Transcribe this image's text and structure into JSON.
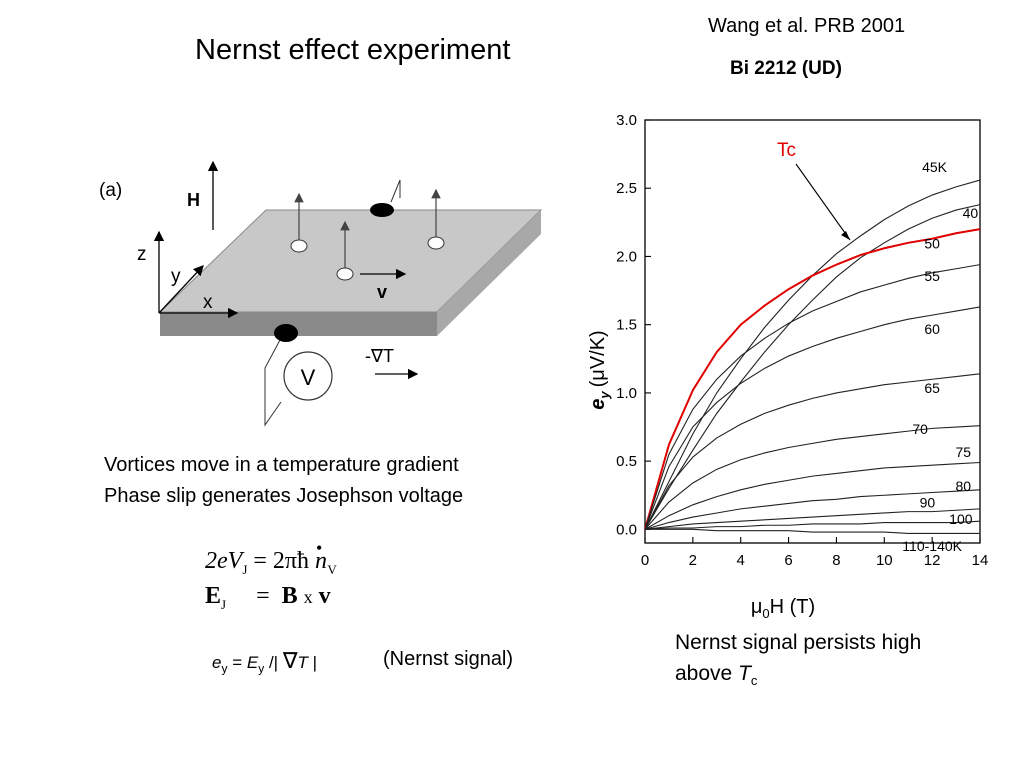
{
  "title": "Nernst effect experiment",
  "citation": "Wang et al. PRB 2001",
  "material": "Bi 2212 (UD)",
  "diagram": {
    "panel_label": "(a)",
    "field_label": "H",
    "axis_z": "z",
    "axis_y": "y",
    "axis_x": "x",
    "velocity_label": "v",
    "voltmeter_label": "V",
    "gradient_label": "-∇T"
  },
  "description": {
    "line1": "Vortices move in a temperature gradient",
    "line2": "Phase slip generates Josephson voltage"
  },
  "equations": {
    "josephson_lhs": "2eV",
    "josephson_lhs_sub": "J",
    "josephson_rhs": "= 2πħ ",
    "josephson_n": "n",
    "josephson_n_sub": "V",
    "field_E": "E",
    "field_E_sub": "J",
    "field_eq": "=",
    "field_B": "B",
    "field_x": "x",
    "field_v": "v",
    "signal_e": "e",
    "signal_e_sub": "y",
    "signal_eq": "=",
    "signal_E": "E",
    "signal_E_sub": "y",
    "signal_div": "/|",
    "signal_nabla": "∇",
    "signal_T": "T",
    "signal_bar": "|",
    "signal_note": "(Nernst signal)"
  },
  "conclusion": {
    "line1": "Nernst signal persists high",
    "line2_prefix": "above ",
    "tc": "T",
    "tc_sub": "c"
  },
  "chart_data": {
    "type": "line",
    "xlabel_prefix": "μ",
    "xlabel_sub": "0",
    "xlabel_suffix": "H (T)",
    "ylabel_main": "e",
    "ylabel_sub": "y",
    "ylabel_unit": "(μV/K)",
    "xlim": [
      0,
      14
    ],
    "ylim": [
      -0.1,
      3.0
    ],
    "xticks": [
      "0",
      "2",
      "4",
      "6",
      "8",
      "10",
      "12",
      "14"
    ],
    "yticks": [
      "0.0",
      "0.5",
      "1.0",
      "1.5",
      "2.0",
      "2.5",
      "3.0"
    ],
    "highlight_color": "#e00000",
    "line_color": "#222222",
    "tc_annotation": "Tc",
    "x": [
      0,
      1,
      2,
      3,
      4,
      5,
      6,
      7,
      8,
      9,
      10,
      11,
      12,
      13,
      14
    ],
    "series": [
      {
        "name": "45K",
        "values": [
          0,
          0.35,
          0.7,
          1.0,
          1.25,
          1.48,
          1.68,
          1.86,
          2.02,
          2.15,
          2.27,
          2.37,
          2.45,
          2.51,
          2.56
        ]
      },
      {
        "name": "40",
        "values": [
          0,
          0.3,
          0.58,
          0.85,
          1.08,
          1.3,
          1.5,
          1.68,
          1.85,
          1.99,
          2.1,
          2.2,
          2.28,
          2.34,
          2.38
        ]
      },
      {
        "name": "50",
        "values": [
          0,
          0.62,
          1.02,
          1.3,
          1.5,
          1.64,
          1.76,
          1.86,
          1.94,
          2.01,
          2.06,
          2.1,
          2.13,
          2.17,
          2.2
        ]
      },
      {
        "name": "55",
        "values": [
          0,
          0.55,
          0.88,
          1.1,
          1.27,
          1.4,
          1.51,
          1.6,
          1.67,
          1.74,
          1.79,
          1.84,
          1.88,
          1.91,
          1.94
        ]
      },
      {
        "name": "60",
        "values": [
          0,
          0.46,
          0.75,
          0.93,
          1.07,
          1.18,
          1.27,
          1.34,
          1.4,
          1.45,
          1.5,
          1.54,
          1.57,
          1.6,
          1.63
        ]
      },
      {
        "name": "65",
        "values": [
          0,
          0.32,
          0.53,
          0.67,
          0.77,
          0.85,
          0.91,
          0.96,
          1.0,
          1.03,
          1.06,
          1.08,
          1.1,
          1.12,
          1.14
        ]
      },
      {
        "name": "70",
        "values": [
          0,
          0.2,
          0.34,
          0.44,
          0.51,
          0.56,
          0.6,
          0.63,
          0.66,
          0.68,
          0.7,
          0.72,
          0.74,
          0.75,
          0.76
        ]
      },
      {
        "name": "75",
        "values": [
          0,
          0.1,
          0.18,
          0.24,
          0.29,
          0.33,
          0.36,
          0.39,
          0.41,
          0.43,
          0.45,
          0.46,
          0.47,
          0.48,
          0.49
        ]
      },
      {
        "name": "80",
        "values": [
          0,
          0.05,
          0.09,
          0.12,
          0.15,
          0.17,
          0.19,
          0.21,
          0.22,
          0.24,
          0.25,
          0.26,
          0.27,
          0.28,
          0.29
        ]
      },
      {
        "name": "90",
        "values": [
          0,
          0.02,
          0.04,
          0.05,
          0.06,
          0.07,
          0.08,
          0.09,
          0.1,
          0.11,
          0.12,
          0.13,
          0.13,
          0.14,
          0.15
        ]
      },
      {
        "name": "100",
        "values": [
          0,
          0.01,
          0.01,
          0.02,
          0.02,
          0.03,
          0.03,
          0.04,
          0.04,
          0.04,
          0.05,
          0.05,
          0.05,
          0.05,
          0.06
        ]
      },
      {
        "name": "110-140K",
        "values": [
          0,
          0,
          0,
          -0.01,
          -0.01,
          -0.01,
          -0.01,
          -0.02,
          -0.02,
          -0.02,
          -0.02,
          -0.03,
          -0.03,
          -0.03,
          -0.03
        ]
      }
    ],
    "highlight_series": "50",
    "inline_labels": [
      {
        "text": "45K",
        "x": 12.1,
        "y": 2.62
      },
      {
        "text": "40",
        "x": 13.6,
        "y": 2.28
      },
      {
        "text": "50",
        "x": 12.0,
        "y": 2.06
      },
      {
        "text": "55",
        "x": 12.0,
        "y": 1.82
      },
      {
        "text": "60",
        "x": 12.0,
        "y": 1.43
      },
      {
        "text": "65",
        "x": 12.0,
        "y": 1.0
      },
      {
        "text": "70",
        "x": 11.5,
        "y": 0.7
      },
      {
        "text": "75",
        "x": 13.3,
        "y": 0.53
      },
      {
        "text": "80",
        "x": 13.3,
        "y": 0.28
      },
      {
        "text": "90",
        "x": 11.8,
        "y": 0.16
      },
      {
        "text": "100",
        "x": 13.2,
        "y": 0.04
      },
      {
        "text": "110-140K",
        "x": 12.0,
        "y": -0.16
      }
    ]
  }
}
